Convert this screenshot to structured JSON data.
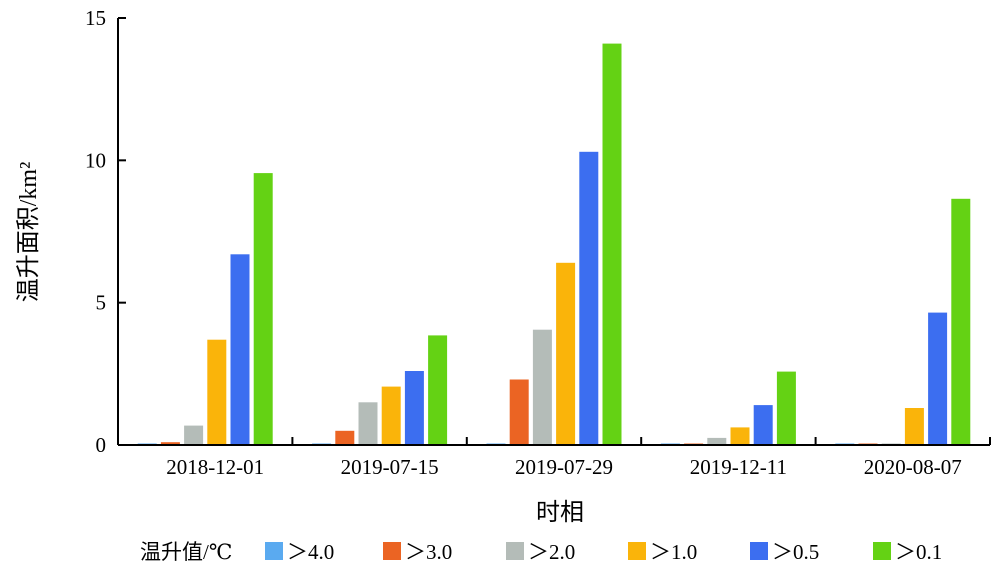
{
  "chart_data": {
    "type": "bar",
    "categories": [
      "2018-12-01",
      "2019-07-15",
      "2019-07-29",
      "2019-12-11",
      "2020-08-07"
    ],
    "series": [
      {
        "name": "＞4.0",
        "color": "#5aaaf0",
        "values": [
          0.05,
          0.03,
          0.03,
          0.0,
          0.0
        ]
      },
      {
        "name": "＞3.0",
        "color": "#eb6423",
        "values": [
          0.1,
          0.5,
          2.3,
          0.05,
          0.03
        ]
      },
      {
        "name": "＞2.0",
        "color": "#b4bcb8",
        "values": [
          0.68,
          1.5,
          4.05,
          0.25,
          0.0
        ]
      },
      {
        "name": "＞1.0",
        "color": "#fab40a",
        "values": [
          3.7,
          2.05,
          6.4,
          0.62,
          1.3
        ]
      },
      {
        "name": "＞0.5",
        "color": "#3c6ef0",
        "values": [
          6.7,
          2.6,
          10.3,
          1.4,
          4.65
        ]
      },
      {
        "name": "＞0.1",
        "color": "#64d214",
        "values": [
          9.55,
          3.85,
          14.1,
          2.58,
          8.65
        ]
      }
    ],
    "xlabel": "时相",
    "ylabel": "温升面积/km²",
    "ylim": [
      0,
      15
    ],
    "yticks": [
      "0",
      "5",
      "10",
      "15"
    ],
    "legend_title": "温升值/℃",
    "legend_position": "bottom",
    "grid": false
  }
}
